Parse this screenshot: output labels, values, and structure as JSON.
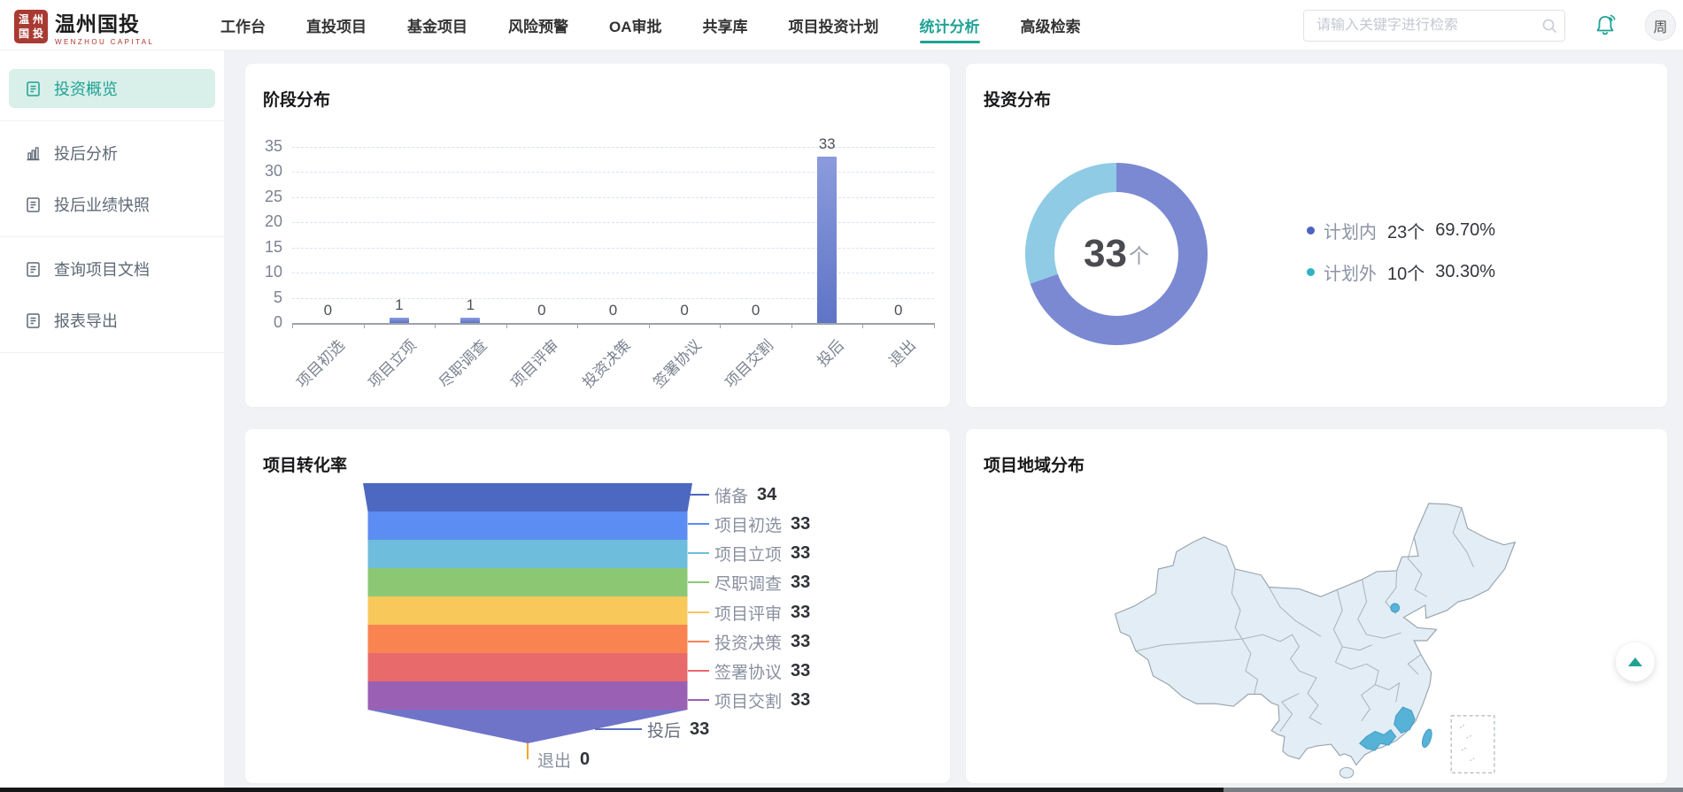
{
  "brand": {
    "name": "温州国投",
    "sub": "WENZHOU CAPITAL",
    "seal_chars": [
      "温",
      "州",
      "国",
      "投"
    ]
  },
  "nav": {
    "items": [
      {
        "label": "工作台",
        "active": false
      },
      {
        "label": "直投项目",
        "active": false
      },
      {
        "label": "基金项目",
        "active": false
      },
      {
        "label": "风险预警",
        "active": false
      },
      {
        "label": "OA审批",
        "active": false
      },
      {
        "label": "共享库",
        "active": false
      },
      {
        "label": "项目投资计划",
        "active": false
      },
      {
        "label": "统计分析",
        "active": true
      },
      {
        "label": "高级检索",
        "active": false
      }
    ]
  },
  "search": {
    "placeholder": "请输入关键字进行检索"
  },
  "user": {
    "avatar_text": "周"
  },
  "sidebar": {
    "items": [
      {
        "label": "投资概览",
        "icon": "document-icon",
        "active": true,
        "divider_after": true
      },
      {
        "label": "投后分析",
        "icon": "bar-chart-icon",
        "active": false,
        "divider_after": false
      },
      {
        "label": "投后业绩快照",
        "icon": "document-icon",
        "active": false,
        "divider_after": true
      },
      {
        "label": "查询项目文档",
        "icon": "document-icon",
        "active": false,
        "divider_after": false
      },
      {
        "label": "报表导出",
        "icon": "document-icon",
        "active": false,
        "divider_after": true
      }
    ]
  },
  "accent": {
    "teal": "#1fa294",
    "teal_bg": "#d9efe9",
    "logo_red": "#a93a32"
  },
  "chart_data": [
    {
      "type": "bar",
      "title": "阶段分布",
      "categories": [
        "项目初选",
        "项目立项",
        "尽职调查",
        "项目评审",
        "投资决策",
        "签署协议",
        "项目交割",
        "投后",
        "退出"
      ],
      "values": [
        0,
        1,
        1,
        0,
        0,
        0,
        0,
        33,
        0
      ],
      "ylabel": "",
      "xlabel": "",
      "ylim": [
        0,
        35
      ],
      "ytick_step": 5,
      "grid": "dashed-horizontal",
      "bar_color_top": "#8b9bdd",
      "bar_color_bottom": "#5f74c6"
    },
    {
      "type": "donut",
      "title": "投资分布",
      "center_value": "33",
      "center_unit": "个",
      "series": [
        {
          "name": "计划内",
          "count": "23个",
          "percent": "69.70%",
          "value": 23,
          "dot_color": "#4e62c2",
          "arc_color": "#7b89d3"
        },
        {
          "name": "计划外",
          "count": "10个",
          "percent": "30.30%",
          "value": 10,
          "dot_color": "#2fb3c5",
          "arc_color": "#8fcbe5"
        }
      ],
      "legend_position": "right"
    },
    {
      "type": "funnel",
      "title": "项目转化率",
      "stages": [
        {
          "name": "储备",
          "value": 34,
          "color": "#4d68c0"
        },
        {
          "name": "项目初选",
          "value": 33,
          "color": "#5b8df2"
        },
        {
          "name": "项目立项",
          "value": 33,
          "color": "#6fbddd"
        },
        {
          "name": "尽职调查",
          "value": 33,
          "color": "#8cc873"
        },
        {
          "name": "项目评审",
          "value": 33,
          "color": "#f9c85a"
        },
        {
          "name": "投资决策",
          "value": 33,
          "color": "#fa8352"
        },
        {
          "name": "签署协议",
          "value": 33,
          "color": "#e96a6a"
        },
        {
          "name": "项目交割",
          "value": 33,
          "color": "#9a60b4"
        },
        {
          "name": "投后",
          "value": 33,
          "color": "#6f74c8"
        },
        {
          "name": "退出",
          "value": 0,
          "color": "#f5a623"
        }
      ]
    },
    {
      "type": "map",
      "title": "项目地域分布",
      "base_color": "#e2edf6",
      "highlight_color": "#57b2d8",
      "highlights": [
        "guangdong",
        "fujian",
        "taiwan",
        "beijing-area"
      ]
    }
  ]
}
